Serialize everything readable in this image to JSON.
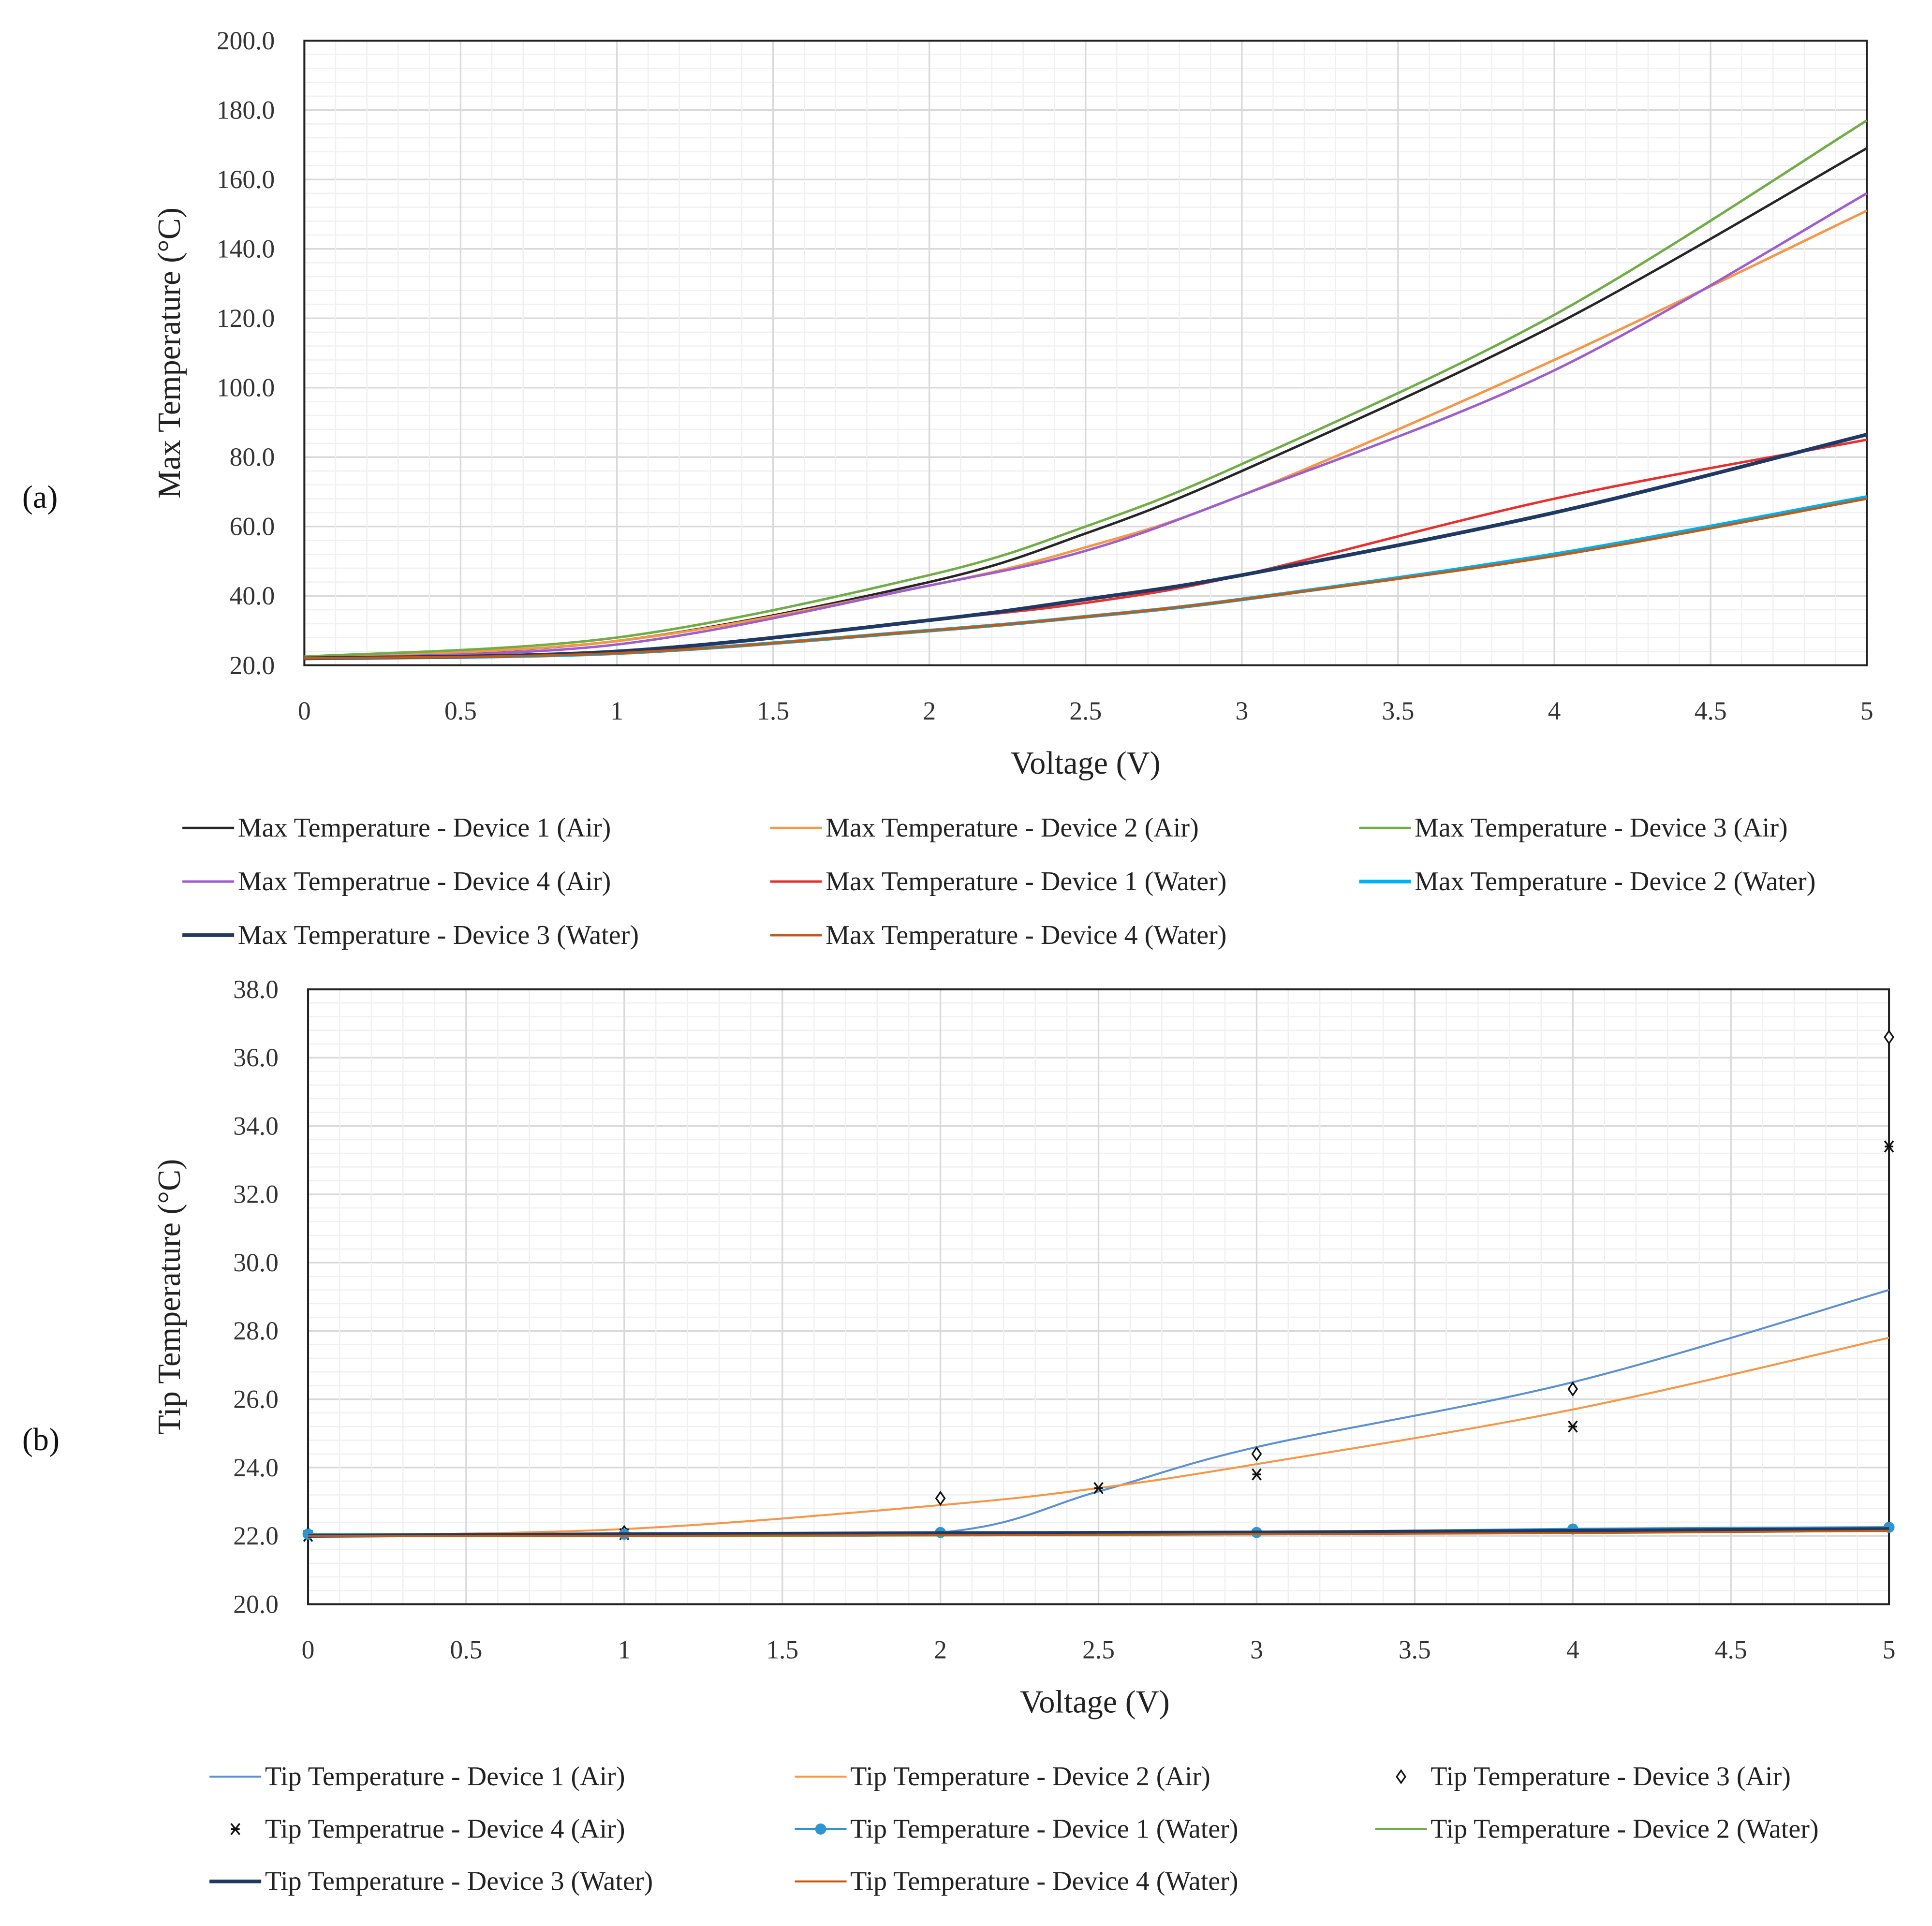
{
  "panels": [
    "(a)",
    "(b)"
  ],
  "chart_data": [
    {
      "type": "line",
      "panel_label": "(a)",
      "xlabel": "Voltage (V)",
      "ylabel": "Max Temperature (°C)",
      "xlim": [
        0,
        5
      ],
      "ylim": [
        20,
        200
      ],
      "xticks": [
        "0",
        "0.5",
        "1",
        "1.5",
        "2",
        "2.5",
        "3",
        "3.5",
        "4",
        "4.5",
        "5"
      ],
      "yticks": [
        "20.0",
        "40.0",
        "60.0",
        "80.0",
        "100.0",
        "120.0",
        "140.0",
        "160.0",
        "180.0",
        "200.0"
      ],
      "grid": true,
      "legend_position": "bottom",
      "x": [
        0,
        1,
        2,
        2.5,
        3,
        4,
        5
      ],
      "series": [
        {
          "name": "Max Temperature - Device 1 (Air)",
          "color": "#262626",
          "width": 2,
          "values": [
            22,
            27,
            44,
            58,
            76,
            118,
            169
          ]
        },
        {
          "name": "Max Temperature - Device 2 (Air)",
          "color": "#f79646",
          "width": 2,
          "values": [
            22,
            27,
            43,
            54,
            69,
            108,
            151
          ]
        },
        {
          "name": "Max Temperature - Device 3 (Air)",
          "color": "#70ad47",
          "width": 2,
          "values": [
            22.5,
            28,
            46,
            60,
            78,
            121,
            177
          ]
        },
        {
          "name": "Max Temperatrue - Device 4 (Air)",
          "color": "#9e5ecf",
          "width": 2,
          "values": [
            22,
            26,
            43,
            53,
            69,
            105,
            156
          ]
        },
        {
          "name": "Max Temperature - Device 1 (Water)",
          "color": "#e8312f",
          "width": 2,
          "values": [
            22,
            24,
            33,
            38,
            46,
            68,
            85
          ]
        },
        {
          "name": "Max Temperature - Device 2 (Water)",
          "color": "#00b0f0",
          "width": 3,
          "values": [
            22,
            23.5,
            30,
            34,
            39,
            52,
            68.5
          ]
        },
        {
          "name": "Max Temperature - Device 3 (Water)",
          "color": "#1f3864",
          "width": 3,
          "values": [
            22,
            24,
            33,
            39,
            46,
            64,
            86.5
          ]
        },
        {
          "name": "Max Temperature - Device 4 (Water)",
          "color": "#c55a11",
          "width": 2,
          "values": [
            22,
            23.5,
            30,
            34,
            39,
            51.5,
            68
          ]
        }
      ]
    },
    {
      "type": "line",
      "panel_label": "(b)",
      "xlabel": "Voltage (V)",
      "ylabel": "Tip Temperature (°C)",
      "xlim": [
        0,
        5
      ],
      "ylim": [
        20,
        38
      ],
      "xticks": [
        "0",
        "0.5",
        "1",
        "1.5",
        "2",
        "2.5",
        "3",
        "3.5",
        "4",
        "4.5",
        "5"
      ],
      "yticks": [
        "20.0",
        "22.0",
        "24.0",
        "26.0",
        "28.0",
        "30.0",
        "32.0",
        "34.0",
        "36.0",
        "38.0"
      ],
      "grid": true,
      "legend_position": "bottom",
      "series": [
        {
          "name": "Tip Temperature - Device 1 (Air)",
          "color": "#5b8fd6",
          "width": 1.6,
          "style": "line",
          "x": [
            0,
            1,
            2,
            2.5,
            3,
            4,
            5
          ],
          "values": [
            22,
            22.05,
            22.1,
            23.3,
            24.6,
            26.5,
            29.2
          ]
        },
        {
          "name": "Tip Temperature - Device 2 (Air)",
          "color": "#f79646",
          "width": 1.6,
          "style": "line",
          "x": [
            0,
            1,
            2,
            2.5,
            3,
            4,
            5
          ],
          "values": [
            22,
            22.2,
            22.9,
            23.4,
            24.1,
            25.7,
            27.8
          ]
        },
        {
          "name": "Tip Temperature - Device 3 (Air)",
          "color": "#111111",
          "style": "diamond",
          "x": [
            0,
            1,
            2,
            3,
            4,
            5
          ],
          "values": [
            22.05,
            22.1,
            23.1,
            24.4,
            26.3,
            36.6
          ]
        },
        {
          "name": "Tip Temperatrue - Device 4 (Air)",
          "color": "#111111",
          "style": "star",
          "x": [
            0,
            1,
            2.5,
            3,
            4,
            5
          ],
          "values": [
            22.0,
            22.05,
            23.4,
            23.8,
            25.2,
            33.4
          ]
        },
        {
          "name": "Tip Temperature - Device 1 (Water)",
          "color": "#2e95d3",
          "width": 2,
          "style": "line-dot",
          "x": [
            0,
            1,
            2,
            3,
            4,
            5
          ],
          "values": [
            22.05,
            22.05,
            22.1,
            22.1,
            22.2,
            22.25
          ]
        },
        {
          "name": "Tip Temperature - Device 2 (Water)",
          "color": "#70ad47",
          "width": 2,
          "style": "line",
          "x": [
            0,
            1,
            2,
            3,
            4,
            5
          ],
          "values": [
            22.0,
            22.0,
            22.02,
            22.05,
            22.1,
            22.15
          ]
        },
        {
          "name": "Tip Temperature - Device 3 (Water)",
          "color": "#1f3864",
          "width": 3,
          "style": "line",
          "x": [
            0,
            1,
            2,
            3,
            4,
            5
          ],
          "values": [
            22.0,
            22.05,
            22.08,
            22.1,
            22.15,
            22.2
          ]
        },
        {
          "name": "Tip Temperature - Device 4 (Water)",
          "color": "#c55a11",
          "width": 1.6,
          "style": "line",
          "x": [
            0,
            1,
            2,
            3,
            4,
            5
          ],
          "values": [
            22.0,
            22.0,
            22.02,
            22.05,
            22.08,
            22.15
          ]
        }
      ]
    }
  ]
}
